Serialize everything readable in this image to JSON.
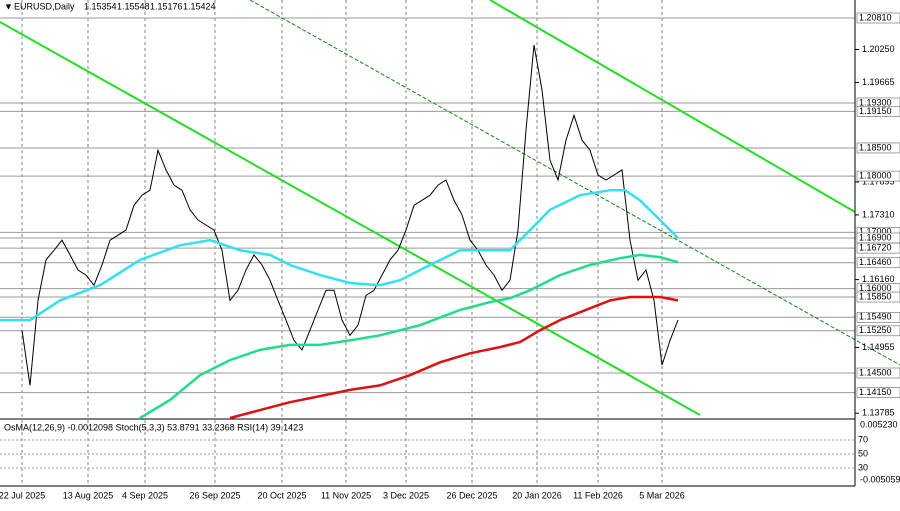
{
  "header": {
    "symbol": "EURUSD,Daily",
    "open": "1.15354",
    "high": "1.15548",
    "low": "1.15176",
    "close": "1.15424"
  },
  "chart_data": {
    "type": "line",
    "xlim": [
      -5.5,
      208.25
    ],
    "ylim": [
      1.137,
      1.2113
    ],
    "xticks": [
      {
        "value": 0,
        "label": "22 Jul 2025"
      },
      {
        "value": 16.5,
        "label": "13 Aug 2025"
      },
      {
        "value": 30.75,
        "label": "4 Sep 2025"
      },
      {
        "value": 48.25,
        "label": "26 Sep 2025"
      },
      {
        "value": 65,
        "label": "20 Oct 2025"
      },
      {
        "value": 81,
        "label": "11 Nov 2025"
      },
      {
        "value": 96,
        "label": "3 Dec 2025"
      },
      {
        "value": 112.5,
        "label": "26 Dec 2025"
      },
      {
        "value": 128.75,
        "label": "20 Jan 2026"
      },
      {
        "value": 144,
        "label": "11 Feb 2026"
      },
      {
        "value": 160,
        "label": "5 Mar 2026"
      }
    ],
    "yticks": [
      {
        "value": 1.2025,
        "label": "1.20250"
      },
      {
        "value": 1.19665,
        "label": "1.19665"
      },
      {
        "value": 1.17895,
        "label": "1.17895"
      },
      {
        "value": 1.1731,
        "label": "1.17310"
      },
      {
        "value": 1.1616,
        "label": "1.16160"
      },
      {
        "value": 1.14955,
        "label": "1.14955"
      },
      {
        "value": 1.13785,
        "label": "1.13785"
      }
    ],
    "levels": [
      {
        "value": 1.2081,
        "label": "1.20810"
      },
      {
        "value": 1.193,
        "label": "1.19300"
      },
      {
        "value": 1.1915,
        "label": "1.19150"
      },
      {
        "value": 1.185,
        "label": "1.18500"
      },
      {
        "value": 1.18,
        "label": "1.18000"
      },
      {
        "value": 1.17,
        "label": "1.17000"
      },
      {
        "value": 1.169,
        "label": "1.16900"
      },
      {
        "value": 1.1672,
        "label": "1.16720"
      },
      {
        "value": 1.1646,
        "label": "1.16460"
      },
      {
        "value": 1.16,
        "label": "1.16000"
      },
      {
        "value": 1.1585,
        "label": "1.15850"
      },
      {
        "value": 1.1549,
        "label": "1.15490"
      },
      {
        "value": 1.1525,
        "label": "1.15250"
      },
      {
        "value": 1.145,
        "label": "1.14500"
      },
      {
        "value": 1.1415,
        "label": "1.14150"
      }
    ],
    "series": [
      {
        "color": "#000000",
        "x": [
          0,
          2,
          4,
          6,
          8,
          10,
          12,
          14,
          16,
          18,
          20,
          22,
          24,
          26,
          28,
          30,
          32,
          34,
          36,
          38,
          40,
          42,
          44,
          46,
          48,
          50,
          52,
          54,
          56,
          58,
          60,
          62,
          64,
          66,
          68,
          70,
          72,
          74,
          76,
          78,
          80,
          82,
          84,
          86,
          88,
          90,
          92,
          94,
          96,
          98,
          100,
          102,
          104,
          106,
          108,
          110,
          112,
          114,
          116,
          118,
          120,
          122,
          124,
          126,
          128,
          130,
          132,
          134,
          136,
          138,
          140,
          142,
          144,
          146,
          148,
          150,
          152,
          154,
          156,
          158,
          160,
          162,
          164
        ],
        "values": [
          1.1526,
          1.1428,
          1.1579,
          1.1651,
          1.1668,
          1.1686,
          1.166,
          1.1633,
          1.1624,
          1.1606,
          1.1642,
          1.1686,
          1.1695,
          1.1704,
          1.1748,
          1.1766,
          1.1775,
          1.1846,
          1.1811,
          1.1784,
          1.1775,
          1.174,
          1.1722,
          1.1713,
          1.1704,
          1.1668,
          1.1579,
          1.1597,
          1.1633,
          1.166,
          1.1642,
          1.1615,
          1.1579,
          1.1544,
          1.1508,
          1.1491,
          1.1526,
          1.1562,
          1.1597,
          1.1597,
          1.1544,
          1.1517,
          1.1535,
          1.1588,
          1.1597,
          1.1624,
          1.1651,
          1.1668,
          1.1704,
          1.1748,
          1.1757,
          1.1766,
          1.1784,
          1.1793,
          1.1757,
          1.1731,
          1.1686,
          1.1668,
          1.1642,
          1.1624,
          1.1597,
          1.1615,
          1.1704,
          1.1882,
          1.2033,
          1.1953,
          1.1828,
          1.1793,
          1.1864,
          1.1908,
          1.1864,
          1.1846,
          1.1802,
          1.1793,
          1.1802,
          1.1811,
          1.1686,
          1.1615,
          1.1633,
          1.1579,
          1.1464,
          1.1508,
          1.1544
        ]
      },
      {
        "color": "#33e0f0",
        "x": [
          -5.5,
          2,
          9.5,
          19.5,
          29.5,
          39.5,
          47,
          54.5,
          62,
          67,
          74.5,
          82,
          89.5,
          94.5,
          102,
          109.5,
          117,
          122,
          127,
          132,
          139.5,
          147,
          150.75,
          154.5,
          159.5,
          164
        ],
        "values": [
          1.1544,
          1.1544,
          1.1579,
          1.1606,
          1.1651,
          1.1677,
          1.1686,
          1.1668,
          1.166,
          1.1642,
          1.1624,
          1.161,
          1.1606,
          1.1615,
          1.1642,
          1.1668,
          1.1668,
          1.1668,
          1.1704,
          1.174,
          1.1766,
          1.1775,
          1.1775,
          1.1757,
          1.1722,
          1.169
        ]
      },
      {
        "color": "#22dd88",
        "x": [
          29.5,
          37,
          44.5,
          52,
          59.5,
          67,
          74.5,
          82,
          89.5,
          99.5,
          109.5,
          117,
          122,
          127,
          134.5,
          142,
          149.5,
          154.5,
          159.5,
          164
        ],
        "values": [
          1.137,
          1.1402,
          1.1446,
          1.1473,
          1.1491,
          1.15,
          1.15,
          1.1508,
          1.1517,
          1.1535,
          1.1562,
          1.1576,
          1.1583,
          1.1597,
          1.1624,
          1.1642,
          1.1654,
          1.166,
          1.1656,
          1.1647
        ]
      },
      {
        "color": "#dd1111",
        "x": [
          52,
          59.5,
          67,
          74.5,
          82,
          89.5,
          97,
          104.5,
          112,
          119.5,
          124.5,
          129.5,
          134.5,
          142,
          147,
          152,
          159.5,
          164
        ],
        "values": [
          1.137,
          1.1384,
          1.1398,
          1.1409,
          1.142,
          1.1428,
          1.1446,
          1.1469,
          1.1485,
          1.1496,
          1.1505,
          1.1526,
          1.1544,
          1.1565,
          1.1579,
          1.1585,
          1.1585,
          1.1579
        ]
      }
    ]
  },
  "oscillator": {
    "legend": "OsMA(12,26,9) -0.0012098  Stoch(5,3,3) 53.8791 33.2368  RSI(14) 39.1423",
    "top": "0.005230",
    "bottom": "-0.005059",
    "levels": [
      "70",
      "50",
      "30"
    ]
  }
}
